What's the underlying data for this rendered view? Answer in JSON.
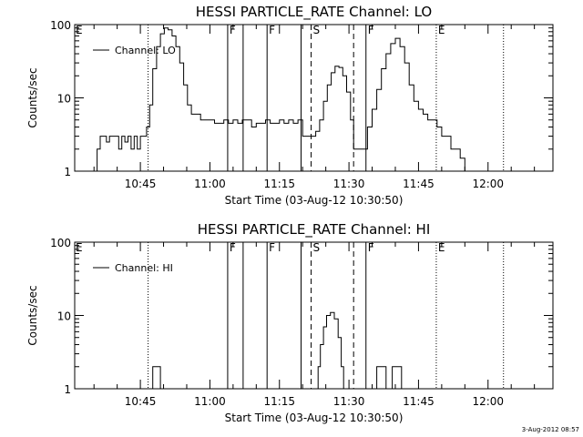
{
  "timestamp": "3-Aug-2012 08:57",
  "chart_data": [
    {
      "type": "line",
      "title": "HESSI PARTICLE_RATE Channel: LO",
      "xlabel": "Start Time (03-Aug-12 10:30:50)",
      "ylabel": "Counts/sec",
      "yscale": "log",
      "ylim": [
        1,
        100
      ],
      "xlim": [
        "10:30:50",
        "12:14:00"
      ],
      "x_ticks": [
        "10:45",
        "11:00",
        "11:15",
        "11:30",
        "11:45",
        "12:00"
      ],
      "y_ticks": [
        "1",
        "10",
        "100"
      ],
      "legend": {
        "label": "Channel: LO",
        "placement": "top-left"
      },
      "markers": [
        {
          "time": "10:46:40",
          "label": "",
          "style": "dotted"
        },
        {
          "time": "11:03:50",
          "label": "F",
          "style": "solid"
        },
        {
          "time": "11:07:10",
          "label": "",
          "style": "solid"
        },
        {
          "time": "11:12:20",
          "label": "F",
          "style": "solid"
        },
        {
          "time": "11:19:40",
          "label": "",
          "style": "solid"
        },
        {
          "time": "11:21:50",
          "label": "S",
          "style": "dashed"
        },
        {
          "time": "11:31:00",
          "label": "",
          "style": "dashed"
        },
        {
          "time": "11:33:40",
          "label": "F",
          "style": "solid"
        },
        {
          "time": "11:48:50",
          "label": "E",
          "style": "dotted"
        },
        {
          "time": "12:03:20",
          "label": "",
          "style": "dotted"
        }
      ],
      "series": [
        {
          "name": "Channel: LO",
          "x": [
            "10:34:10",
            "10:34:50",
            "10:35:00",
            "10:35:40",
            "10:36:20",
            "10:37:00",
            "10:37:40",
            "10:38:20",
            "10:39:00",
            "10:39:40",
            "10:40:20",
            "10:41:00",
            "10:41:40",
            "10:42:20",
            "10:43:00",
            "10:43:40",
            "10:44:20",
            "10:45:00",
            "10:45:40",
            "10:46:20",
            "10:47:00",
            "10:47:40",
            "10:48:30",
            "10:49:20",
            "10:50:10",
            "10:51:00",
            "10:51:50",
            "10:52:40",
            "10:53:30",
            "10:54:20",
            "10:55:10",
            "10:56:00",
            "10:57:00",
            "10:58:00",
            "10:59:00",
            "11:00:00",
            "11:01:00",
            "11:02:00",
            "11:03:00",
            "11:04:00",
            "11:05:00",
            "11:06:00",
            "11:07:00",
            "11:08:00",
            "11:09:00",
            "11:10:00",
            "11:11:00",
            "11:12:00",
            "11:13:00",
            "11:14:00",
            "11:15:00",
            "11:16:00",
            "11:17:00",
            "11:18:00",
            "11:19:00",
            "11:20:00",
            "11:21:00",
            "11:22:00",
            "11:22:50",
            "11:23:40",
            "11:24:30",
            "11:25:20",
            "11:26:10",
            "11:27:00",
            "11:27:50",
            "11:28:40",
            "11:29:30",
            "11:30:20",
            "11:31:00",
            "11:32:00",
            "11:33:00",
            "11:34:00",
            "11:35:00",
            "11:36:00",
            "11:37:00",
            "11:38:00",
            "11:39:00",
            "11:40:00",
            "11:41:00",
            "11:42:00",
            "11:43:00",
            "11:44:00",
            "11:45:00",
            "11:46:00",
            "11:47:00",
            "11:48:00",
            "11:49:00",
            "11:50:00",
            "11:51:00",
            "11:52:00",
            "11:53:00",
            "11:54:00",
            "11:55:00",
            "11:55:30"
          ],
          "y": [
            1,
            1,
            1,
            2,
            3,
            3,
            2.5,
            3,
            3,
            3,
            2,
            3,
            2.5,
            3,
            2,
            3,
            2,
            3,
            3,
            4,
            8,
            25,
            50,
            75,
            90,
            85,
            70,
            50,
            30,
            15,
            8,
            6,
            6,
            5,
            5,
            5,
            4.5,
            4.5,
            5,
            4.5,
            5,
            4.5,
            5,
            5,
            4,
            4.5,
            4.5,
            5,
            4.5,
            4.5,
            5,
            4.5,
            5,
            4.5,
            5,
            3,
            3,
            3,
            3.5,
            5,
            9,
            15,
            22,
            27,
            26,
            20,
            12,
            5,
            2,
            2,
            2,
            4,
            7,
            13,
            25,
            40,
            55,
            65,
            50,
            30,
            15,
            9,
            7,
            6,
            5,
            5,
            4,
            3,
            3,
            2,
            2,
            1.5,
            1,
            1
          ]
        }
      ]
    },
    {
      "type": "line",
      "title": "HESSI PARTICLE_RATE Channel: HI",
      "xlabel": "Start Time (03-Aug-12 10:30:50)",
      "ylabel": "Counts/sec",
      "yscale": "log",
      "ylim": [
        1,
        100
      ],
      "xlim": [
        "10:30:50",
        "12:14:00"
      ],
      "x_ticks": [
        "10:45",
        "11:00",
        "11:15",
        "11:30",
        "11:45",
        "12:00"
      ],
      "y_ticks": [
        "1",
        "10",
        "100"
      ],
      "legend": {
        "label": "Channel: HI",
        "placement": "top-left"
      },
      "markers": [
        {
          "time": "10:46:40",
          "label": "",
          "style": "dotted"
        },
        {
          "time": "11:03:50",
          "label": "F",
          "style": "solid"
        },
        {
          "time": "11:07:10",
          "label": "",
          "style": "solid"
        },
        {
          "time": "11:12:20",
          "label": "F",
          "style": "solid"
        },
        {
          "time": "11:19:40",
          "label": "",
          "style": "solid"
        },
        {
          "time": "11:21:50",
          "label": "S",
          "style": "dashed"
        },
        {
          "time": "11:31:00",
          "label": "",
          "style": "dashed"
        },
        {
          "time": "11:33:40",
          "label": "F",
          "style": "solid"
        },
        {
          "time": "11:48:50",
          "label": "E",
          "style": "dotted"
        },
        {
          "time": "12:03:20",
          "label": "",
          "style": "dotted"
        }
      ],
      "series": [
        {
          "name": "Channel: HI",
          "x": [
            "10:47:20",
            "10:47:40",
            "10:48:00",
            "10:48:30",
            "10:49:00",
            "10:49:20",
            "11:22:50",
            "11:23:20",
            "11:23:50",
            "11:24:30",
            "11:25:10",
            "11:26:00",
            "11:26:50",
            "11:27:40",
            "11:28:20",
            "11:28:50",
            "11:29:20",
            "11:35:30",
            "11:36:00",
            "11:36:30",
            "11:37:40",
            "11:38:00",
            "11:38:40",
            "11:39:20",
            "11:39:40",
            "11:40:10",
            "11:41:20"
          ],
          "y": [
            1,
            2,
            2,
            2,
            2,
            1,
            1,
            2,
            4,
            7,
            10,
            11,
            9,
            5,
            2,
            1,
            1,
            1,
            2,
            2,
            2,
            1,
            1,
            2,
            2,
            2,
            1
          ],
          "segments": [
            [
              0,
              5
            ],
            [
              6,
              16
            ],
            [
              17,
              26
            ]
          ]
        }
      ]
    }
  ]
}
